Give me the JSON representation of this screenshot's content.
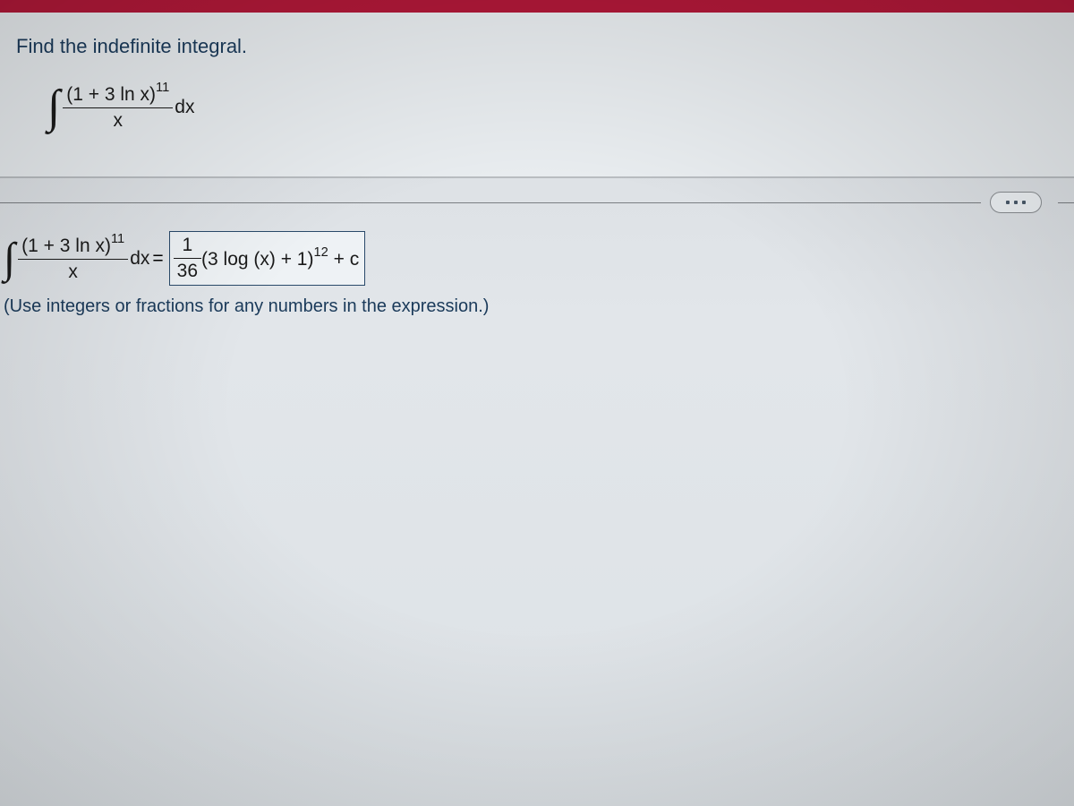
{
  "colors": {
    "top_bar": "#b01838",
    "panel_bg": "#e8ecef",
    "body_gradient_top": "#d8dce0",
    "body_gradient_bottom": "#dde2e6",
    "text_main": "#1a3a5a",
    "math_text": "#1a1a1a",
    "divider": "#7a7e82",
    "box_border": "#2a4a6a"
  },
  "question": {
    "prompt": "Find the indefinite integral.",
    "integral": {
      "numerator_base": "(1 + 3 ln x)",
      "numerator_exp": "11",
      "denominator": "x",
      "differential": "dx"
    }
  },
  "answer": {
    "lhs": {
      "numerator_base": "(1 + 3 ln x)",
      "numerator_exp": "11",
      "denominator": "x",
      "differential": "dx"
    },
    "rhs": {
      "coef_num": "1",
      "coef_den": "36",
      "expr_base": "(3 log (x) + 1)",
      "expr_exp": "12",
      "tail": " + c"
    },
    "hint": "(Use integers or fractions for any numbers in the expression.)"
  },
  "typography": {
    "question_fontsize": 22,
    "math_fontsize": 21,
    "hint_fontsize": 20
  }
}
